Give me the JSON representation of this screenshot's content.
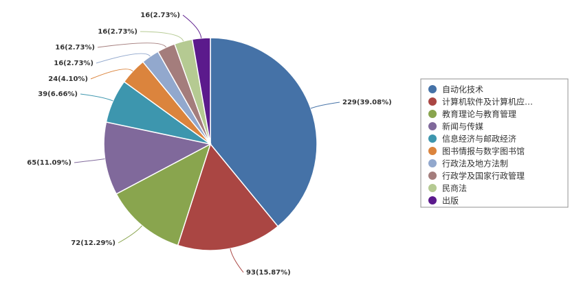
{
  "chart_data": {
    "type": "pie",
    "categories": [
      "自动化技术",
      "计算机软件及计算机应…",
      "教育理论与教育管理",
      "新闻与传媒",
      "信息经济与邮政经济",
      "图书情报与数字图书馆",
      "行政法及地方法制",
      "行政学及国家行政管理",
      "民商法",
      "出版"
    ],
    "values": [
      229,
      93,
      72,
      65,
      39,
      24,
      16,
      16,
      16,
      16
    ],
    "labels": [
      "229(39.08%)",
      "93(15.87%)",
      "72(12.29%)",
      "65(11.09%)",
      "39(6.66%)",
      "24(4.10%)",
      "16(2.73%)",
      "16(2.73%)",
      "16(2.73%)",
      "16(2.73%)"
    ],
    "colors": [
      "#4572A7",
      "#AA4643",
      "#89A54E",
      "#80699B",
      "#3D96AE",
      "#DB843D",
      "#92A8CD",
      "#A47D7C",
      "#B5CA92",
      "#5B1A8C"
    ],
    "legend_position": "right"
  }
}
